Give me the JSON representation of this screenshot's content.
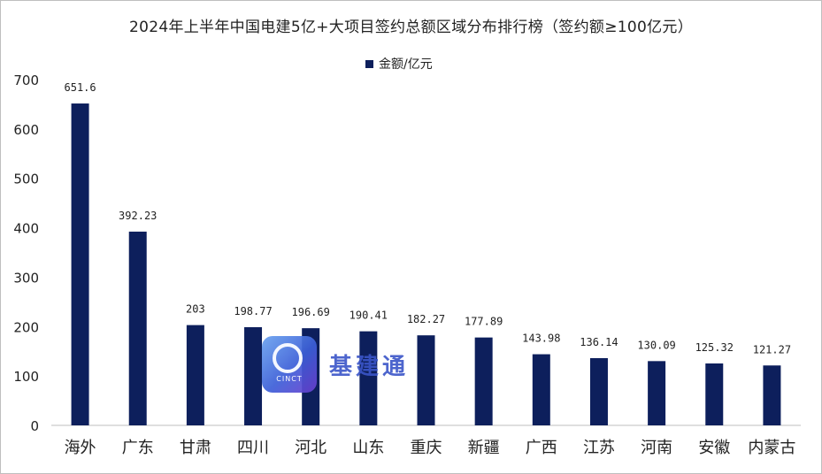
{
  "title": "2024年上半年中国电建5亿+大项目签约总额区域分布排行榜（签约额≥100亿元）",
  "legend_label": "金额/亿元",
  "colors": {
    "bar": "#0d1f5c",
    "axis": "#bfbfbf"
  },
  "watermark": {
    "logo_text": "CINCT",
    "text": "基建通"
  },
  "chart_data": {
    "type": "bar",
    "title": "2024年上半年中国电建5亿+大项目签约总额区域分布排行榜（签约额≥100亿元）",
    "categories": [
      "海外",
      "广东",
      "甘肃",
      "四川",
      "河北",
      "山东",
      "重庆",
      "新疆",
      "广西",
      "江苏",
      "河南",
      "安徽",
      "内蒙古"
    ],
    "series": [
      {
        "name": "金额/亿元",
        "values": [
          651.6,
          392.23,
          203,
          198.77,
          196.69,
          190.41,
          182.27,
          177.89,
          143.98,
          136.14,
          130.09,
          125.32,
          121.27
        ]
      }
    ],
    "data_labels": [
      "651.6",
      "392.23",
      "203",
      "198.77",
      "196.69",
      "190.41",
      "182.27",
      "177.89",
      "143.98",
      "136.14",
      "130.09",
      "125.32",
      "121.27"
    ],
    "ylim": [
      0,
      700
    ],
    "yticks": [
      0,
      100,
      200,
      300,
      400,
      500,
      600,
      700
    ],
    "xlabel": "",
    "ylabel": "",
    "grid": false,
    "legend_position": "top"
  }
}
